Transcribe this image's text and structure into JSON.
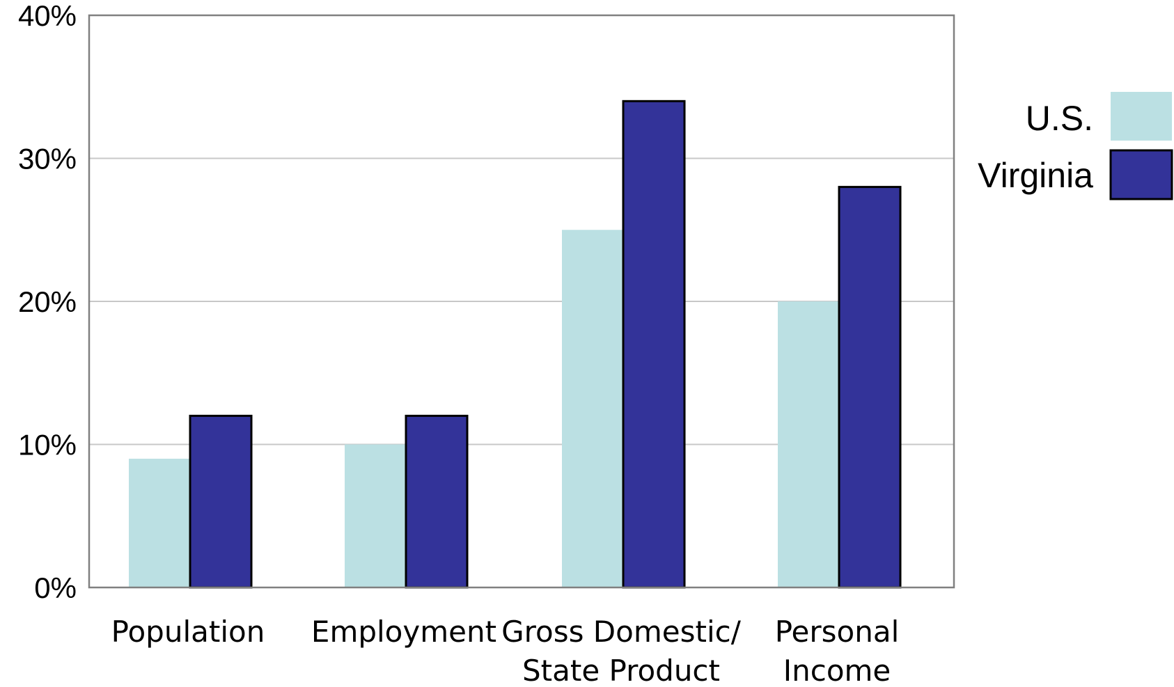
{
  "chart_data": {
    "type": "bar",
    "categories": [
      [
        "Population"
      ],
      [
        "Employment"
      ],
      [
        "Gross Domestic/",
        "State Product"
      ],
      [
        "Personal",
        "Income"
      ]
    ],
    "series": [
      {
        "name": "U.S.",
        "values": [
          9,
          10,
          25,
          20
        ],
        "color": "#BBE0E3",
        "outlined": false
      },
      {
        "name": "Virginia",
        "values": [
          12,
          12,
          34,
          28
        ],
        "color": "#333399",
        "outlined": true
      }
    ],
    "ylim": [
      0,
      40
    ],
    "yticks": [
      0,
      10,
      20,
      30,
      40
    ],
    "ytick_labels": [
      "0%",
      "10%",
      "20%",
      "30%",
      "40%"
    ],
    "grid": true,
    "legend_position": "right",
    "colors": {
      "grid": "#C8C8C8",
      "axis": "#808080",
      "bar_outline": "#000000"
    }
  }
}
